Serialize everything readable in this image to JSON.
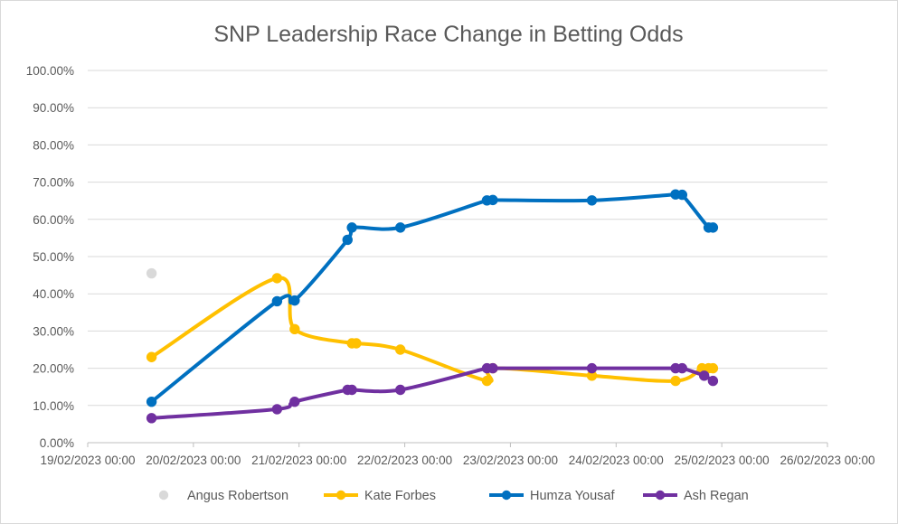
{
  "chart_data": {
    "type": "line",
    "title": "SNP Leadership Race Change in Betting Odds",
    "xlabel": "",
    "ylabel": "",
    "xlim": [
      "19/02/2023 00:00",
      "26/02/2023 00:00"
    ],
    "ylim": [
      0,
      100
    ],
    "y_ticks": [
      "0.00%",
      "10.00%",
      "20.00%",
      "30.00%",
      "40.00%",
      "50.00%",
      "60.00%",
      "70.00%",
      "80.00%",
      "90.00%",
      "100.00%"
    ],
    "x_ticks": [
      "19/02/2023 00:00",
      "20/02/2023 00:00",
      "21/02/2023 00:00",
      "22/02/2023 00:00",
      "23/02/2023 00:00",
      "24/02/2023 00:00",
      "25/02/2023 00:00",
      "26/02/2023 00:00"
    ],
    "grid": true,
    "legend_position": "bottom",
    "series": [
      {
        "name": "Angus Robertson",
        "color": "#d9d9d9",
        "x": [
          "19/02/2023 14:30"
        ],
        "y": [
          45.5
        ]
      },
      {
        "name": "Kate Forbes",
        "color": "#ffc000",
        "x": [
          "19/02/2023 14:30",
          "20/02/2023 19:00",
          "20/02/2023 23:00",
          "21/02/2023 12:00",
          "21/02/2023 13:00",
          "21/02/2023 23:00",
          "22/02/2023 18:40",
          "22/02/2023 20:00",
          "23/02/2023 18:30",
          "24/02/2023 13:30",
          "24/02/2023 19:30",
          "24/02/2023 21:00",
          "24/02/2023 22:00"
        ],
        "y": [
          23,
          44.2,
          30.5,
          26.7,
          26.7,
          25,
          16.6,
          20,
          18,
          16.6,
          20,
          20,
          20
        ]
      },
      {
        "name": "Humza Yousaf",
        "color": "#0070c0",
        "x": [
          "19/02/2023 14:30",
          "20/02/2023 19:00",
          "20/02/2023 23:00",
          "21/02/2023 11:00",
          "21/02/2023 12:00",
          "21/02/2023 23:00",
          "22/02/2023 18:40",
          "22/02/2023 20:00",
          "23/02/2023 18:30",
          "24/02/2023 13:30",
          "24/02/2023 15:00",
          "24/02/2023 21:00",
          "24/02/2023 22:00"
        ],
        "y": [
          11,
          38,
          38.2,
          54.5,
          57.8,
          57.8,
          65.1,
          65.2,
          65.1,
          66.7,
          66.6,
          57.8,
          57.8
        ]
      },
      {
        "name": "Ash Regan",
        "color": "#7030a0",
        "x": [
          "19/02/2023 14:30",
          "20/02/2023 19:00",
          "20/02/2023 23:00",
          "21/02/2023 11:00",
          "21/02/2023 12:00",
          "21/02/2023 23:00",
          "22/02/2023 18:40",
          "22/02/2023 20:00",
          "23/02/2023 18:30",
          "24/02/2023 13:30",
          "24/02/2023 15:00",
          "24/02/2023 20:00",
          "24/02/2023 22:00"
        ],
        "y": [
          6.6,
          9,
          11,
          14.2,
          14.2,
          14.2,
          20,
          20,
          20,
          20,
          20,
          18,
          16.6
        ]
      }
    ]
  }
}
